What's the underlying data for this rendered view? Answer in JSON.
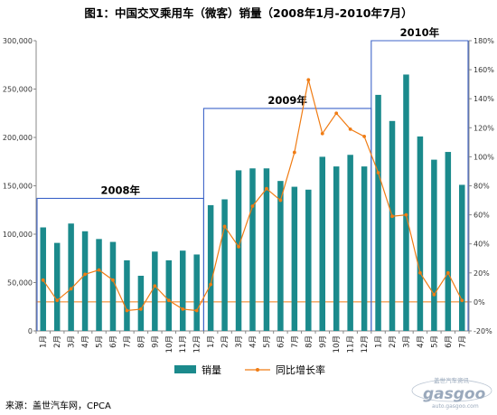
{
  "chart_data": {
    "type": "bar",
    "title": "图1：中国交叉乘用车（微客）销量（2008年1月-2010年7月）",
    "categories": [
      "1月",
      "2月",
      "3月",
      "4月",
      "5月",
      "6月",
      "7月",
      "8月",
      "9月",
      "10月",
      "11月",
      "12月",
      "1月",
      "2月",
      "3月",
      "4月",
      "5月",
      "6月",
      "7月",
      "8月",
      "9月",
      "10月",
      "11月",
      "12月",
      "1月",
      "2月",
      "3月",
      "4月",
      "5月",
      "6月",
      "7月"
    ],
    "series": [
      {
        "name": "销量",
        "type": "bar",
        "axis": "left",
        "color": "#1b8a8c",
        "values": [
          107000,
          91000,
          111000,
          103000,
          95000,
          92000,
          73000,
          57000,
          82000,
          73000,
          83000,
          79000,
          130000,
          136000,
          166000,
          168000,
          168000,
          155000,
          149000,
          146000,
          180000,
          170000,
          182000,
          170000,
          244000,
          217000,
          265000,
          201000,
          177000,
          185000,
          151000
        ]
      },
      {
        "name": "同比增长率",
        "type": "line",
        "axis": "right",
        "color": "#f07c14",
        "values": [
          15,
          1,
          9,
          19,
          22,
          15,
          -6,
          -5,
          11,
          1,
          -5,
          -6,
          12,
          52,
          38,
          66,
          78,
          70,
          103,
          153,
          116,
          130,
          119,
          114,
          89,
          59,
          60,
          20,
          5,
          20,
          1
        ]
      }
    ],
    "y_left": {
      "ylim": [
        0,
        300000
      ],
      "ticks": [
        "0",
        "50,000",
        "100,000",
        "150,000",
        "200,000",
        "250,000",
        "300,000"
      ]
    },
    "y_right": {
      "ylim": [
        -20,
        180
      ],
      "ticks": [
        "-20%",
        "0%",
        "20%",
        "40%",
        "60%",
        "80%",
        "100%",
        "120%",
        "140%",
        "160%",
        "180%"
      ]
    },
    "periods": [
      {
        "label": "2008年",
        "start_index": 0,
        "end_index": 11,
        "level": 137000
      },
      {
        "label": "2009年",
        "start_index": 12,
        "end_index": 23,
        "level": 230000
      },
      {
        "label": "2010年",
        "start_index": 24,
        "end_index": 30,
        "level": 300000
      }
    ],
    "legend_position": "bottom",
    "grid": false
  },
  "source": "来源：盖世汽车网，CPCA",
  "watermark": {
    "main": "gasgoo",
    "sub": "auto.gasgoo.com",
    "cn": "盖世汽车资讯"
  }
}
